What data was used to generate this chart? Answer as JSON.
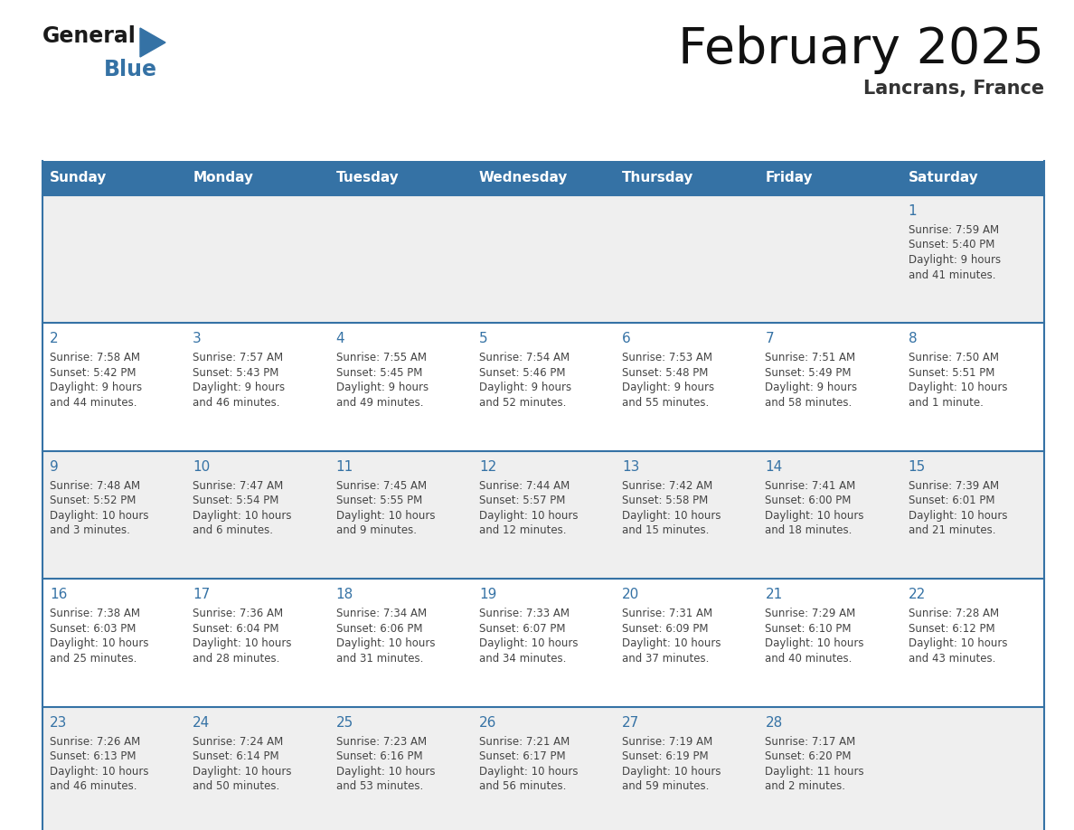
{
  "title": "February 2025",
  "subtitle": "Lancrans, France",
  "days_of_week": [
    "Sunday",
    "Monday",
    "Tuesday",
    "Wednesday",
    "Thursday",
    "Friday",
    "Saturday"
  ],
  "header_bg": "#3572a5",
  "header_text_color": "#ffffff",
  "row_bg_odd": "#efefef",
  "row_bg_even": "#ffffff",
  "cell_border_color": "#3572a5",
  "day_num_color": "#3572a5",
  "text_color": "#444444",
  "logo_color_general": "#1a1a1a",
  "logo_color_blue": "#3572a5",
  "calendar_data": [
    [
      null,
      null,
      null,
      null,
      null,
      null,
      {
        "day": 1,
        "sunrise": "7:59 AM",
        "sunset": "5:40 PM",
        "daylight_line1": "Daylight: 9 hours",
        "daylight_line2": "and 41 minutes."
      }
    ],
    [
      {
        "day": 2,
        "sunrise": "7:58 AM",
        "sunset": "5:42 PM",
        "daylight_line1": "Daylight: 9 hours",
        "daylight_line2": "and 44 minutes."
      },
      {
        "day": 3,
        "sunrise": "7:57 AM",
        "sunset": "5:43 PM",
        "daylight_line1": "Daylight: 9 hours",
        "daylight_line2": "and 46 minutes."
      },
      {
        "day": 4,
        "sunrise": "7:55 AM",
        "sunset": "5:45 PM",
        "daylight_line1": "Daylight: 9 hours",
        "daylight_line2": "and 49 minutes."
      },
      {
        "day": 5,
        "sunrise": "7:54 AM",
        "sunset": "5:46 PM",
        "daylight_line1": "Daylight: 9 hours",
        "daylight_line2": "and 52 minutes."
      },
      {
        "day": 6,
        "sunrise": "7:53 AM",
        "sunset": "5:48 PM",
        "daylight_line1": "Daylight: 9 hours",
        "daylight_line2": "and 55 minutes."
      },
      {
        "day": 7,
        "sunrise": "7:51 AM",
        "sunset": "5:49 PM",
        "daylight_line1": "Daylight: 9 hours",
        "daylight_line2": "and 58 minutes."
      },
      {
        "day": 8,
        "sunrise": "7:50 AM",
        "sunset": "5:51 PM",
        "daylight_line1": "Daylight: 10 hours",
        "daylight_line2": "and 1 minute."
      }
    ],
    [
      {
        "day": 9,
        "sunrise": "7:48 AM",
        "sunset": "5:52 PM",
        "daylight_line1": "Daylight: 10 hours",
        "daylight_line2": "and 3 minutes."
      },
      {
        "day": 10,
        "sunrise": "7:47 AM",
        "sunset": "5:54 PM",
        "daylight_line1": "Daylight: 10 hours",
        "daylight_line2": "and 6 minutes."
      },
      {
        "day": 11,
        "sunrise": "7:45 AM",
        "sunset": "5:55 PM",
        "daylight_line1": "Daylight: 10 hours",
        "daylight_line2": "and 9 minutes."
      },
      {
        "day": 12,
        "sunrise": "7:44 AM",
        "sunset": "5:57 PM",
        "daylight_line1": "Daylight: 10 hours",
        "daylight_line2": "and 12 minutes."
      },
      {
        "day": 13,
        "sunrise": "7:42 AM",
        "sunset": "5:58 PM",
        "daylight_line1": "Daylight: 10 hours",
        "daylight_line2": "and 15 minutes."
      },
      {
        "day": 14,
        "sunrise": "7:41 AM",
        "sunset": "6:00 PM",
        "daylight_line1": "Daylight: 10 hours",
        "daylight_line2": "and 18 minutes."
      },
      {
        "day": 15,
        "sunrise": "7:39 AM",
        "sunset": "6:01 PM",
        "daylight_line1": "Daylight: 10 hours",
        "daylight_line2": "and 21 minutes."
      }
    ],
    [
      {
        "day": 16,
        "sunrise": "7:38 AM",
        "sunset": "6:03 PM",
        "daylight_line1": "Daylight: 10 hours",
        "daylight_line2": "and 25 minutes."
      },
      {
        "day": 17,
        "sunrise": "7:36 AM",
        "sunset": "6:04 PM",
        "daylight_line1": "Daylight: 10 hours",
        "daylight_line2": "and 28 minutes."
      },
      {
        "day": 18,
        "sunrise": "7:34 AM",
        "sunset": "6:06 PM",
        "daylight_line1": "Daylight: 10 hours",
        "daylight_line2": "and 31 minutes."
      },
      {
        "day": 19,
        "sunrise": "7:33 AM",
        "sunset": "6:07 PM",
        "daylight_line1": "Daylight: 10 hours",
        "daylight_line2": "and 34 minutes."
      },
      {
        "day": 20,
        "sunrise": "7:31 AM",
        "sunset": "6:09 PM",
        "daylight_line1": "Daylight: 10 hours",
        "daylight_line2": "and 37 minutes."
      },
      {
        "day": 21,
        "sunrise": "7:29 AM",
        "sunset": "6:10 PM",
        "daylight_line1": "Daylight: 10 hours",
        "daylight_line2": "and 40 minutes."
      },
      {
        "day": 22,
        "sunrise": "7:28 AM",
        "sunset": "6:12 PM",
        "daylight_line1": "Daylight: 10 hours",
        "daylight_line2": "and 43 minutes."
      }
    ],
    [
      {
        "day": 23,
        "sunrise": "7:26 AM",
        "sunset": "6:13 PM",
        "daylight_line1": "Daylight: 10 hours",
        "daylight_line2": "and 46 minutes."
      },
      {
        "day": 24,
        "sunrise": "7:24 AM",
        "sunset": "6:14 PM",
        "daylight_line1": "Daylight: 10 hours",
        "daylight_line2": "and 50 minutes."
      },
      {
        "day": 25,
        "sunrise": "7:23 AM",
        "sunset": "6:16 PM",
        "daylight_line1": "Daylight: 10 hours",
        "daylight_line2": "and 53 minutes."
      },
      {
        "day": 26,
        "sunrise": "7:21 AM",
        "sunset": "6:17 PM",
        "daylight_line1": "Daylight: 10 hours",
        "daylight_line2": "and 56 minutes."
      },
      {
        "day": 27,
        "sunrise": "7:19 AM",
        "sunset": "6:19 PM",
        "daylight_line1": "Daylight: 10 hours",
        "daylight_line2": "and 59 minutes."
      },
      {
        "day": 28,
        "sunrise": "7:17 AM",
        "sunset": "6:20 PM",
        "daylight_line1": "Daylight: 11 hours",
        "daylight_line2": "and 2 minutes."
      },
      null
    ]
  ]
}
